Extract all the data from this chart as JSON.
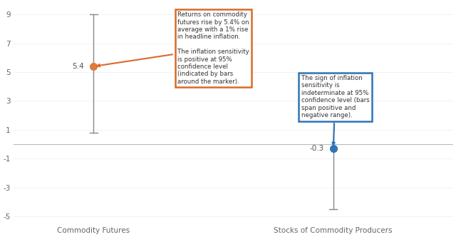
{
  "categories": [
    "Commodity Futures",
    "Stocks of Commodity Producers"
  ],
  "x_positions": [
    1,
    4
  ],
  "values": [
    5.4,
    -0.3
  ],
  "ci_low": [
    0.8,
    -4.5
  ],
  "ci_high": [
    9.0,
    3.0
  ],
  "colors": [
    "#E07B39",
    "#2E75B6"
  ],
  "marker_color_1": "#E07B39",
  "marker_color_2": "#2E75B6",
  "ylim": [
    -5.5,
    9.8
  ],
  "yticks": [
    -5,
    -3,
    -1,
    1,
    3,
    5,
    7,
    9
  ],
  "annotation_1": "Returns on commodity\nfutures rise by 5.4% on\naverage with a 1% rise\nin headline inflation.\n\nThe inflation sensitivity\nis positive at 95%\nconfidence level\n(indicated by bars\naround the marker).",
  "annotation_2": "The sign of inflation\nsensitivity is\nindeterminate at 95%\nconfidence level (bars\nspan positive and\nnegative range).",
  "box_color_1": "#D96B2A",
  "box_color_2": "#2E75B6",
  "label_1": "5.4",
  "label_2": "-0.3",
  "background_color": "#FFFFFF",
  "xlim": [
    0.0,
    5.5
  ]
}
